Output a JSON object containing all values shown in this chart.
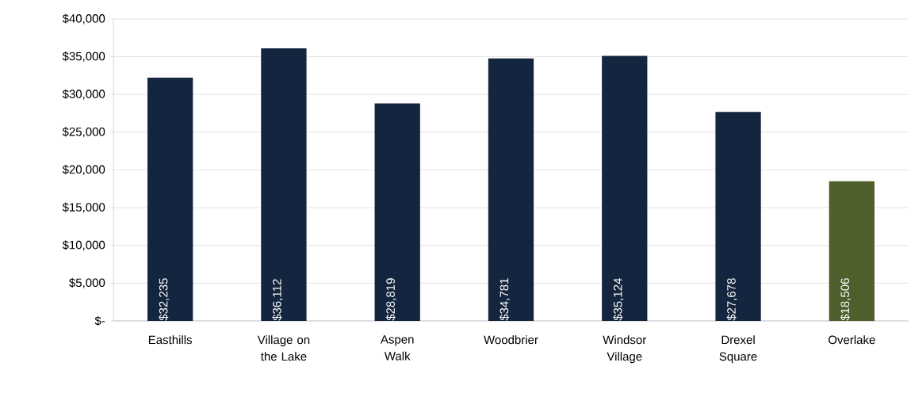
{
  "chart_data": {
    "type": "bar",
    "categories": [
      "Easthills",
      "Village on the Lake",
      "Aspen Walk",
      "Woodbrier",
      "Windsor Village",
      "Drexel Square",
      "Overlake"
    ],
    "values": [
      32235,
      36112,
      28819,
      34781,
      35124,
      27678,
      18506
    ],
    "value_labels": [
      "$32,235",
      "$36,112",
      "$28,819",
      "$34,781",
      "$35,124",
      "$27,678",
      "$18,506"
    ],
    "colors": [
      "#14263f",
      "#14263f",
      "#14263f",
      "#14263f",
      "#14263f",
      "#14263f",
      "#4e5f2b"
    ],
    "ylim": [
      0,
      40000
    ],
    "yticks": [
      {
        "value": 0,
        "label": "$-"
      },
      {
        "value": 5000,
        "label": "$5,000"
      },
      {
        "value": 10000,
        "label": "$10,000"
      },
      {
        "value": 15000,
        "label": "$15,000"
      },
      {
        "value": 20000,
        "label": "$20,000"
      },
      {
        "value": 25000,
        "label": "$25,000"
      },
      {
        "value": 30000,
        "label": "$30,000"
      },
      {
        "value": 35000,
        "label": "$35,000"
      },
      {
        "value": 40000,
        "label": "$40,000"
      }
    ],
    "grid": "y"
  }
}
